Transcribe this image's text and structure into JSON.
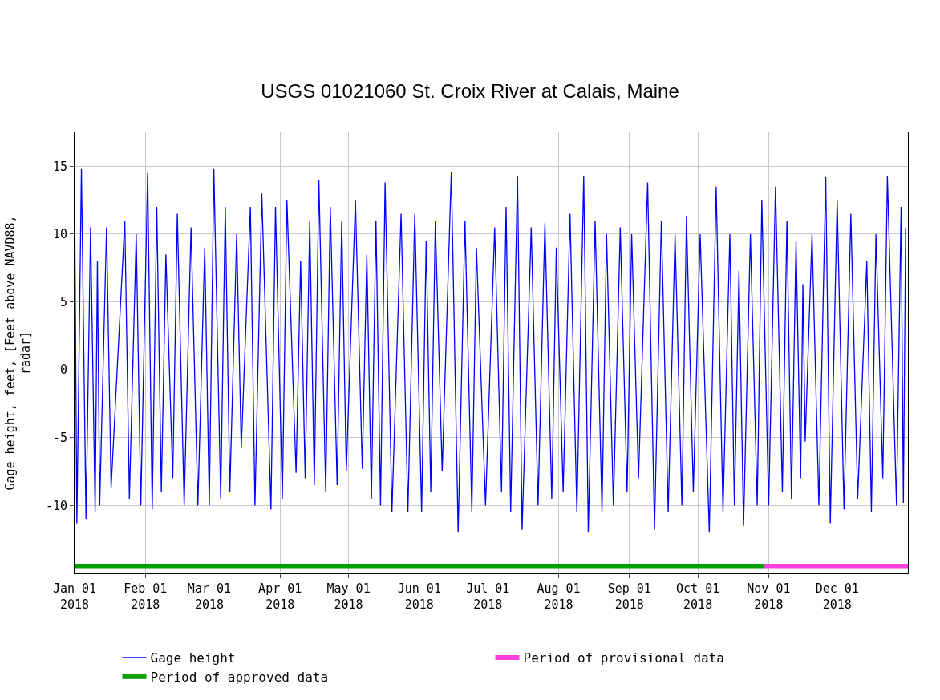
{
  "chart_data": {
    "type": "line",
    "title": "USGS 01021060 St. Croix River at Calais, Maine",
    "ylabel": "Gage height, feet, [Feet above NAVD88,\nradar]",
    "series": [
      {
        "name": "Gage height",
        "color": "#0000ff",
        "line_style": "solid",
        "x": [
          "2018-01-01",
          "2018-01-02",
          "2018-01-04",
          "2018-01-06",
          "2018-01-08",
          "2018-01-10",
          "2018-01-11",
          "2018-01-12",
          "2018-01-15",
          "2018-01-17",
          "2018-01-23",
          "2018-01-25",
          "2018-01-28",
          "2018-01-30",
          "2018-02-02",
          "2018-02-04",
          "2018-02-06",
          "2018-02-08",
          "2018-02-10",
          "2018-02-13",
          "2018-02-15",
          "2018-02-18",
          "2018-02-21",
          "2018-02-24",
          "2018-02-27",
          "2018-03-01",
          "2018-03-03",
          "2018-03-06",
          "2018-03-08",
          "2018-03-10",
          "2018-03-13",
          "2018-03-15",
          "2018-03-19",
          "2018-03-21",
          "2018-03-24",
          "2018-03-28",
          "2018-03-30",
          "2018-04-02",
          "2018-04-04",
          "2018-04-08",
          "2018-04-10",
          "2018-04-12",
          "2018-04-14",
          "2018-04-16",
          "2018-04-18",
          "2018-04-21",
          "2018-04-23",
          "2018-04-26",
          "2018-04-28",
          "2018-04-30",
          "2018-05-04",
          "2018-05-07",
          "2018-05-09",
          "2018-05-11",
          "2018-05-13",
          "2018-05-15",
          "2018-05-17",
          "2018-05-20",
          "2018-05-24",
          "2018-05-27",
          "2018-05-30",
          "2018-06-02",
          "2018-06-04",
          "2018-06-06",
          "2018-06-08",
          "2018-06-11",
          "2018-06-15",
          "2018-06-18",
          "2018-06-21",
          "2018-06-24",
          "2018-06-26",
          "2018-06-30",
          "2018-07-04",
          "2018-07-07",
          "2018-07-09",
          "2018-07-11",
          "2018-07-14",
          "2018-07-16",
          "2018-07-20",
          "2018-07-23",
          "2018-07-26",
          "2018-07-29",
          "2018-07-31",
          "2018-08-03",
          "2018-08-06",
          "2018-08-09",
          "2018-08-12",
          "2018-08-14",
          "2018-08-17",
          "2018-08-20",
          "2018-08-22",
          "2018-08-25",
          "2018-08-28",
          "2018-08-31",
          "2018-09-02",
          "2018-09-05",
          "2018-09-09",
          "2018-09-12",
          "2018-09-15",
          "2018-09-18",
          "2018-09-21",
          "2018-09-24",
          "2018-09-26",
          "2018-09-29",
          "2018-10-02",
          "2018-10-06",
          "2018-10-09",
          "2018-10-12",
          "2018-10-15",
          "2018-10-17",
          "2018-10-19",
          "2018-10-21",
          "2018-10-24",
          "2018-10-27",
          "2018-10-29",
          "2018-11-01",
          "2018-11-04",
          "2018-11-07",
          "2018-11-09",
          "2018-11-11",
          "2018-11-13",
          "2018-11-15",
          "2018-11-16",
          "2018-11-17",
          "2018-11-20",
          "2018-11-23",
          "2018-11-26",
          "2018-11-28",
          "2018-12-01",
          "2018-12-04",
          "2018-12-07",
          "2018-12-10",
          "2018-12-14",
          "2018-12-16",
          "2018-12-18",
          "2018-12-21",
          "2018-12-23",
          "2018-12-27",
          "2018-12-29",
          "2018-12-30",
          "2018-12-31"
        ],
        "values": [
          13,
          -11.3,
          14.8,
          -11,
          10.5,
          -10.5,
          8,
          -10,
          10.5,
          -8.7,
          11,
          -9.5,
          10,
          -10,
          14.5,
          -10.3,
          12,
          -9,
          8.5,
          -8,
          11.5,
          -10,
          10.5,
          -10,
          9,
          -10,
          14.8,
          -9.5,
          12,
          -9,
          10,
          -5.8,
          12,
          -10,
          13,
          -10.3,
          12,
          -9.5,
          12.5,
          -7.6,
          8,
          -8,
          11,
          -8.5,
          14,
          -9,
          12,
          -8.5,
          11,
          -7.5,
          12.5,
          -7.3,
          8.5,
          -9.5,
          11,
          -10,
          13.8,
          -10.5,
          11.5,
          -10.5,
          11.5,
          -10.5,
          9.5,
          -9,
          11,
          -7.5,
          14.6,
          -12,
          11,
          -10.5,
          9,
          -10,
          10.5,
          -9,
          12,
          -10.5,
          14.3,
          -11.8,
          10.5,
          -10,
          10.8,
          -9.5,
          9,
          -9,
          11.5,
          -10.5,
          14.3,
          -12,
          11,
          -10.5,
          10,
          -10,
          10.5,
          -9,
          10,
          -8,
          13.8,
          -11.8,
          11,
          -10.5,
          10,
          -10,
          11.3,
          -9,
          10,
          -12,
          13.5,
          -10.5,
          10,
          -10,
          7.3,
          -11.5,
          10,
          -10,
          12.5,
          -10,
          13.5,
          -9,
          11,
          -9.5,
          9.5,
          -8,
          6.3,
          -5.3,
          10,
          -10,
          14.2,
          -11.3,
          12.5,
          -10.3,
          11.5,
          -9.5,
          8,
          -10.5,
          10,
          -8,
          14.3,
          -10,
          12,
          -9.8,
          10.5
        ]
      },
      {
        "name": "Period of provisional data",
        "color": "#ff40e0",
        "line_style": "solid",
        "x": [
          "2018-10-30",
          "2019-01-01"
        ],
        "values": [
          -14.5,
          -14.5
        ]
      },
      {
        "name": "Period of approved data",
        "color": "#00a000",
        "line_style": "solid",
        "x": [
          "2018-01-01",
          "2018-10-30"
        ],
        "values": [
          -14.5,
          -14.5
        ]
      }
    ],
    "xlim": [
      "2018-01-01",
      "2019-01-01"
    ],
    "xticks": [
      {
        "value": "2018-01-01",
        "label": "Jan 01\n2018"
      },
      {
        "value": "2018-02-01",
        "label": "Feb 01\n2018"
      },
      {
        "value": "2018-03-01",
        "label": "Mar 01\n2018"
      },
      {
        "value": "2018-04-01",
        "label": "Apr 01\n2018"
      },
      {
        "value": "2018-05-01",
        "label": "May 01\n2018"
      },
      {
        "value": "2018-06-01",
        "label": "Jun 01\n2018"
      },
      {
        "value": "2018-07-01",
        "label": "Jul 01\n2018"
      },
      {
        "value": "2018-08-01",
        "label": "Aug 01\n2018"
      },
      {
        "value": "2018-09-01",
        "label": "Sep 01\n2018"
      },
      {
        "value": "2018-10-01",
        "label": "Oct 01\n2018"
      },
      {
        "value": "2018-11-01",
        "label": "Nov 01\n2018"
      },
      {
        "value": "2018-12-01",
        "label": "Dec 01\n2018"
      }
    ],
    "ylim": [
      -15,
      17.5
    ],
    "yticks": [
      -10,
      -5,
      0,
      5,
      10,
      15
    ],
    "grid": true,
    "legend": "bottom",
    "marker": "none"
  }
}
